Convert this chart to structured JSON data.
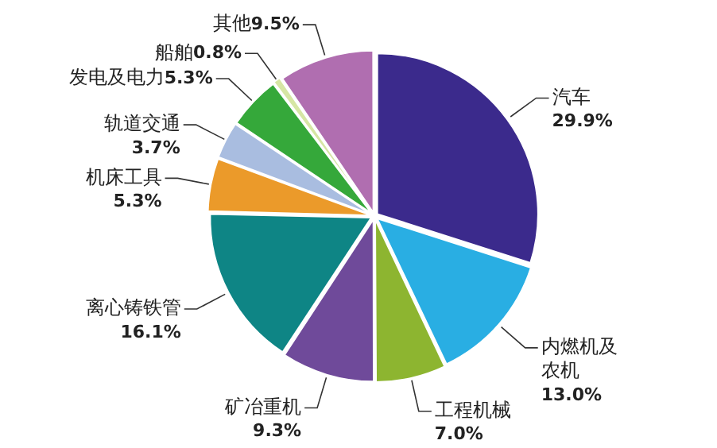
{
  "chart_data": {
    "type": "pie",
    "categories": [
      "汽车",
      "内燃机及农机",
      "工程机械",
      "矿冶重机",
      "离心铸铁管",
      "机床工具",
      "轨道交通",
      "发电及电力",
      "船舶",
      "其他"
    ],
    "values": [
      29.9,
      13.0,
      7.0,
      9.3,
      16.1,
      5.3,
      3.7,
      5.3,
      0.8,
      9.5
    ],
    "colors": [
      "#3b2a8c",
      "#29aee3",
      "#8db530",
      "#6f4a9a",
      "#0e8585",
      "#eb9a2a",
      "#a9bde0",
      "#35a83a",
      "#d6e6a4",
      "#b06eb0"
    ],
    "value_labels": [
      "29.9%",
      "13.0%",
      "7.0%",
      "9.3%",
      "16.1%",
      "5.3%",
      "3.7%",
      "5.3%",
      "0.8%",
      "9.5%"
    ],
    "legend": false
  }
}
